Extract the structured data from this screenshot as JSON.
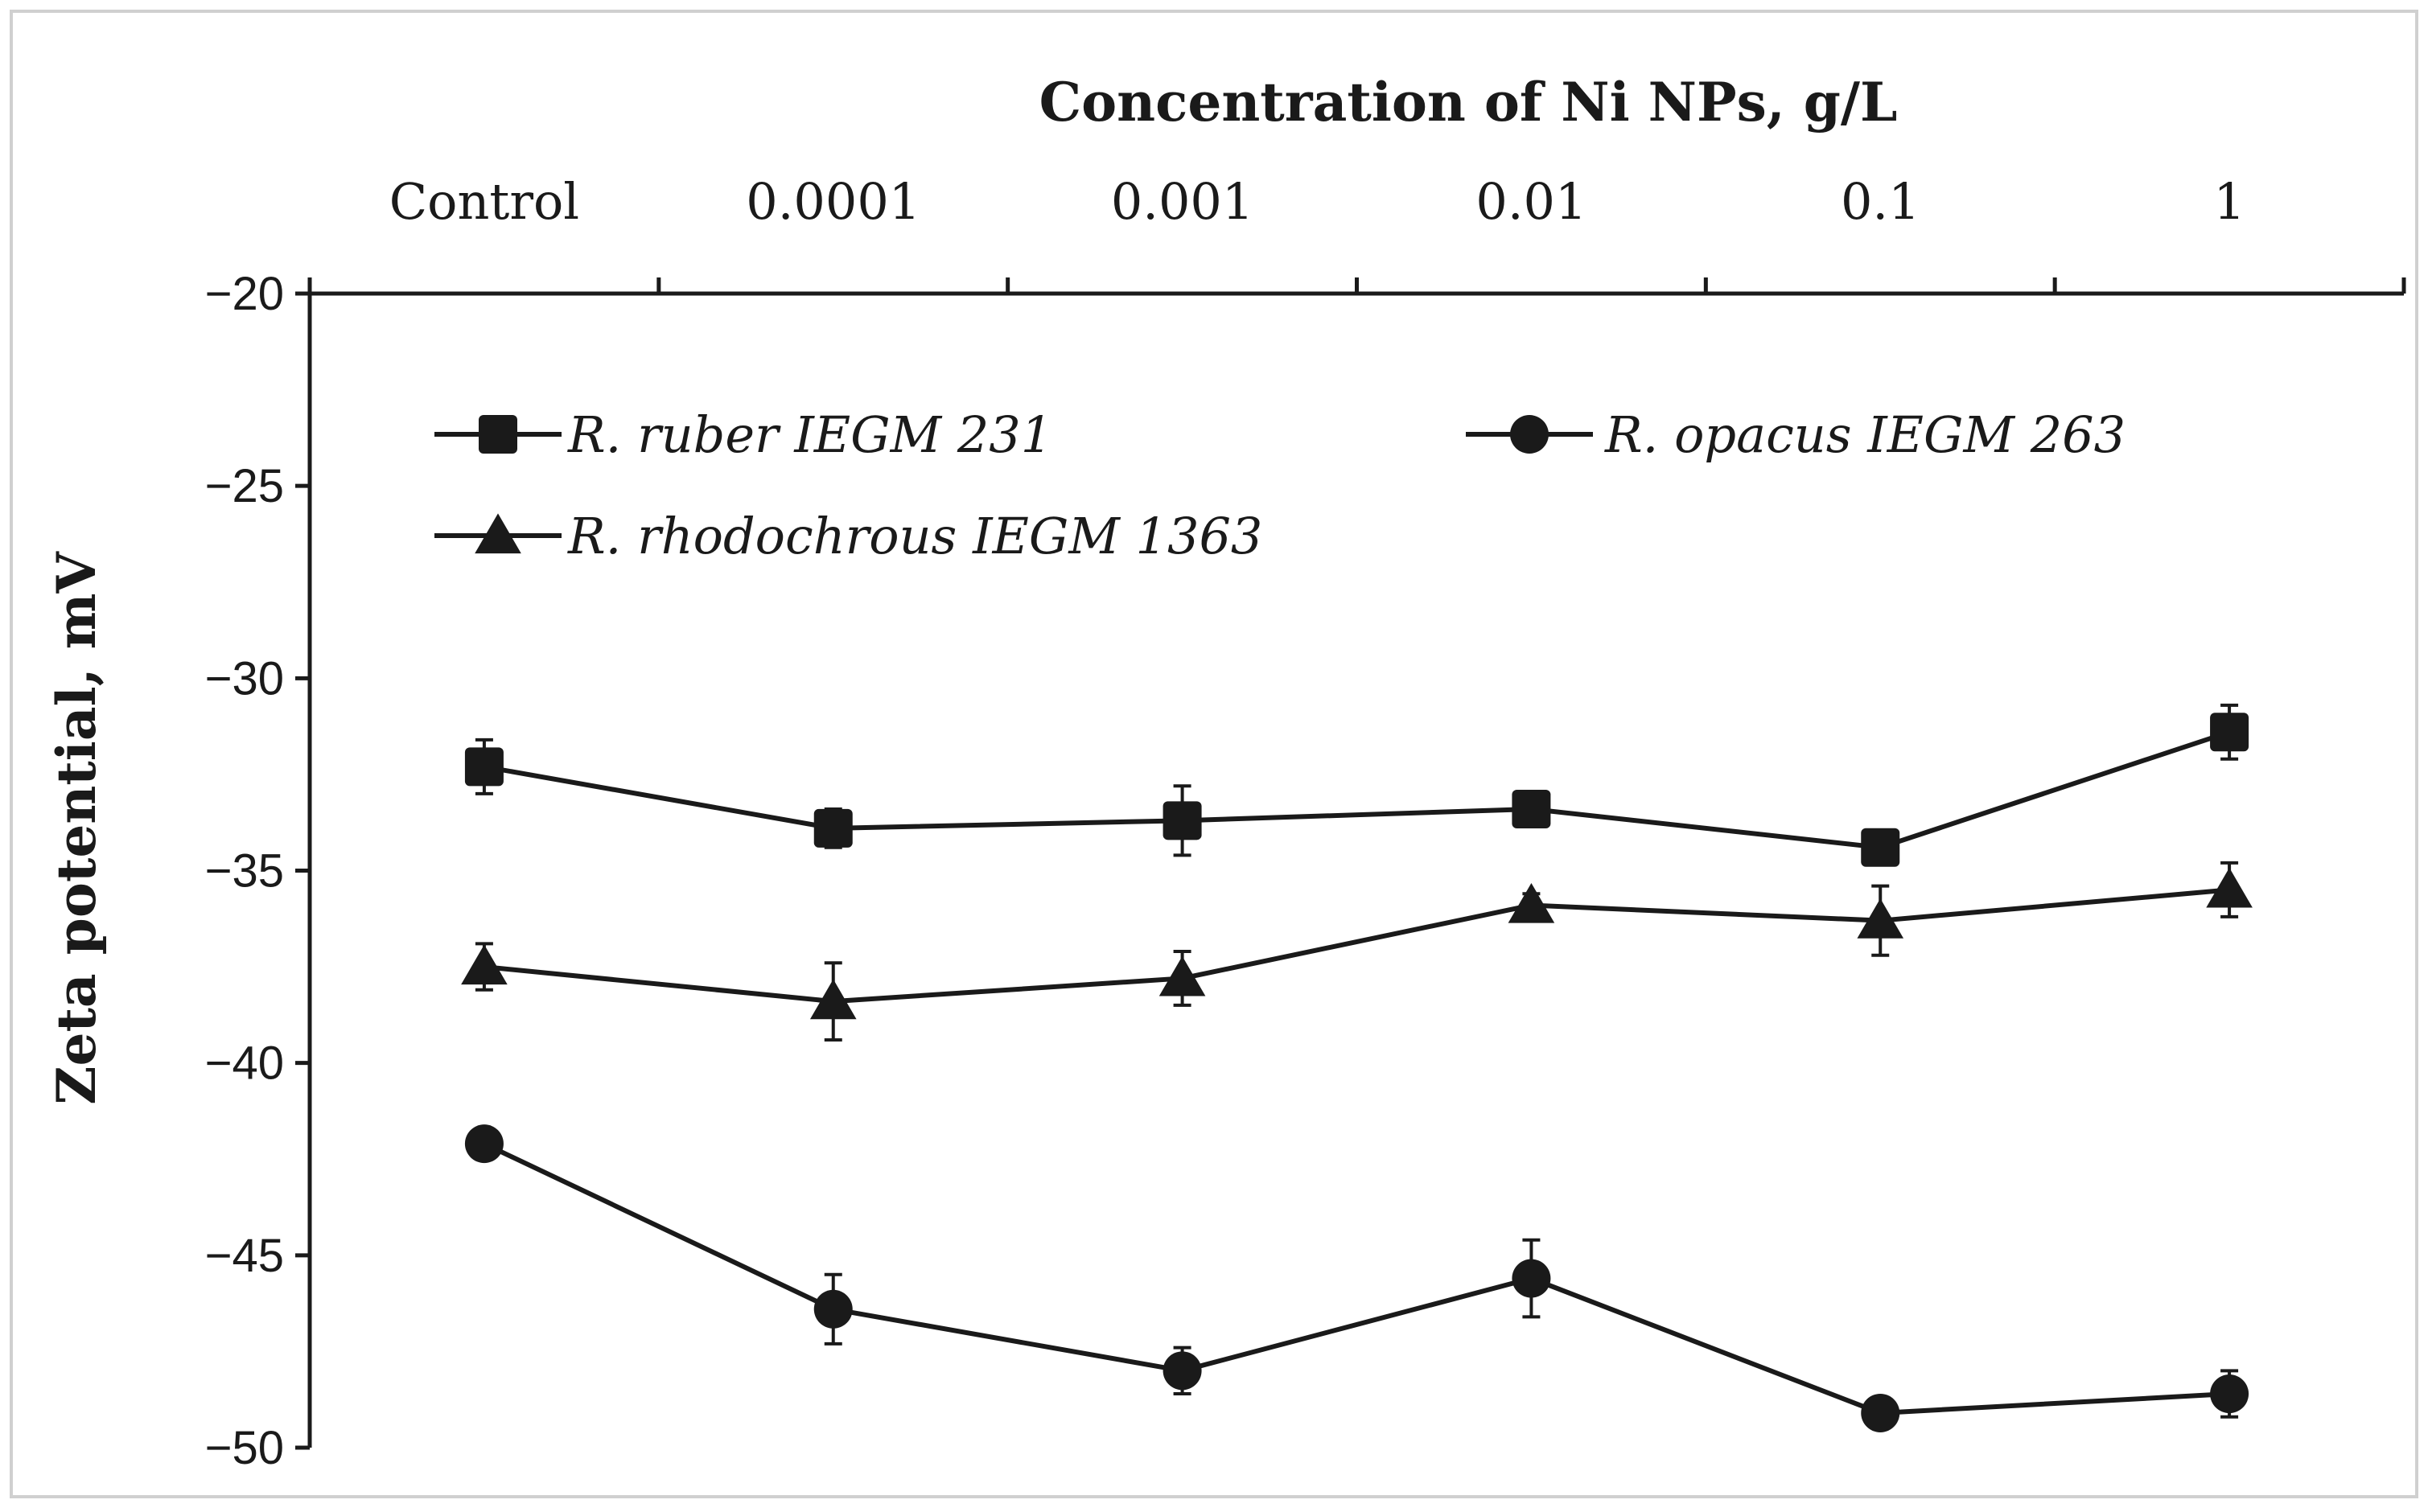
{
  "chart_data": {
    "type": "line",
    "title": "",
    "xlabel": "Concentration of Ni NPs, g/L",
    "ylabel": "Zeta potential, mV",
    "categories": [
      "Control",
      "0.0001",
      "0.001",
      "0.01",
      "0.1",
      "1"
    ],
    "y_ticks": [
      "−20",
      "−25",
      "−30",
      "−35",
      "−40",
      "−45",
      "−50"
    ],
    "ylim": [
      -50,
      -20
    ],
    "x_axis_position": "top",
    "legend_position": "top-left",
    "grid": false,
    "series": [
      {
        "name": "R. ruber IEGM 231",
        "marker": "square",
        "values": [
          -32.3,
          -33.9,
          -33.7,
          -33.4,
          -34.4,
          -31.4
        ],
        "errors": [
          0.7,
          0.5,
          0.9,
          0.4,
          0.4,
          0.7
        ]
      },
      {
        "name": "R. opacus IEGM 263",
        "marker": "circle",
        "values": [
          -42.1,
          -46.4,
          -48.0,
          -45.6,
          -49.1,
          -48.6
        ],
        "errors": [
          0.4,
          0.9,
          0.6,
          1.0,
          0.3,
          0.6
        ]
      },
      {
        "name": "R. rhodochrous IEGM 1363",
        "marker": "triangle",
        "values": [
          -37.5,
          -38.4,
          -37.8,
          -35.9,
          -36.3,
          -35.5
        ],
        "errors": [
          0.6,
          1.0,
          0.7,
          0.3,
          0.9,
          0.7
        ]
      }
    ]
  }
}
